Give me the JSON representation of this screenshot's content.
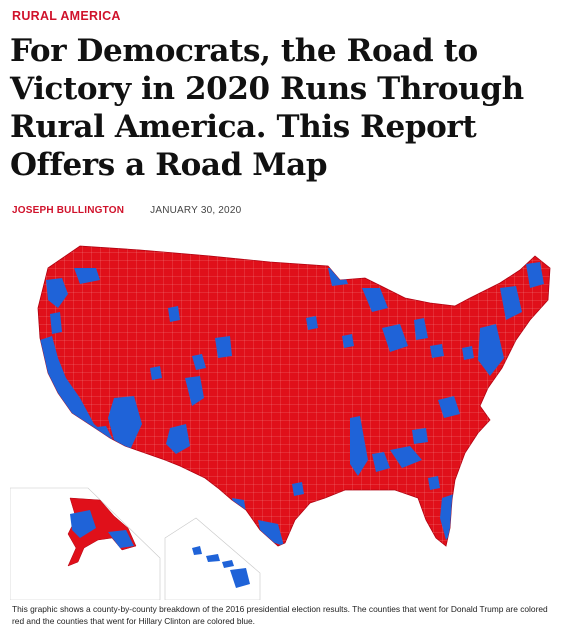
{
  "article": {
    "category": "RURAL AMERICA",
    "headline": "For Democrats, the Road to Victory in 2020 Runs Through Rural America. This Report Offers a Road Map",
    "author": "JOSEPH BULLINGTON",
    "date": "JANUARY 30, 2020",
    "caption": "This graphic shows a county-by-county breakdown of the 2016 presidential election results. The counties that went for Donald Trump are colored red and the counties that went for Hillary Clinton are colored blue."
  },
  "map": {
    "colors": {
      "trump": "#e0101a",
      "clinton": "#1f63d8",
      "border": "#f0a8a8"
    }
  },
  "colors": {
    "accent": "#d0122b",
    "text": "#111111"
  }
}
